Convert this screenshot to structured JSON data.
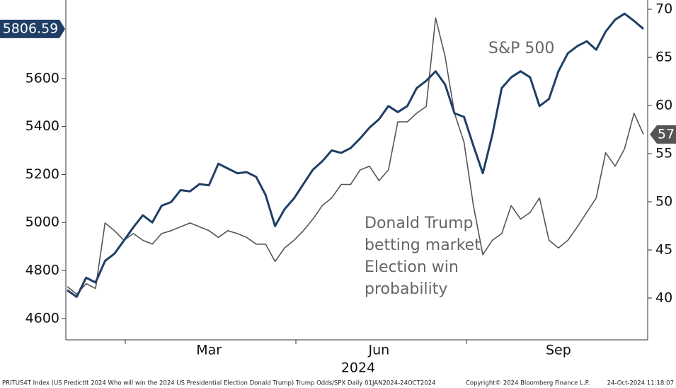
{
  "chart_data": {
    "type": "line",
    "categories": [
      null,
      null,
      null,
      null,
      null,
      null,
      null,
      null,
      null,
      null,
      null,
      null,
      null,
      null,
      null,
      "Mar",
      null,
      null,
      null,
      null,
      null,
      null,
      null,
      null,
      null,
      null,
      null,
      null,
      null,
      null,
      null,
      null,
      null,
      "Jun",
      null,
      null,
      null,
      null,
      null,
      null,
      null,
      null,
      null,
      null,
      null,
      null,
      null,
      null,
      null,
      null,
      null,
      null,
      "Sep",
      null,
      null,
      null,
      null,
      null,
      null,
      null,
      null,
      null
    ],
    "x_label": "2024",
    "series": [
      {
        "name": "S&P 500",
        "color": "#1f3f66",
        "axis": "y",
        "values": [
          4718,
          4690,
          4770,
          4750,
          4840,
          4870,
          4925,
          4980,
          5030,
          5000,
          5070,
          5085,
          5135,
          5130,
          5160,
          5155,
          5245,
          5225,
          5205,
          5210,
          5190,
          5115,
          4985,
          5055,
          5100,
          5160,
          5220,
          5255,
          5300,
          5290,
          5310,
          5350,
          5395,
          5430,
          5485,
          5460,
          5485,
          5560,
          5590,
          5630,
          5575,
          5455,
          5440,
          5320,
          5205,
          5365,
          5560,
          5605,
          5630,
          5605,
          5485,
          5515,
          5630,
          5705,
          5735,
          5755,
          5720,
          5795,
          5845,
          5870,
          5840,
          5806.59
        ],
        "last_label": "5806.59"
      },
      {
        "name": [
          "Donald Trump",
          "betting market",
          "Election win",
          "probability"
        ],
        "color": "#555555",
        "axis": "y2",
        "values": [
          41.2,
          40.4,
          41.5,
          41,
          47.8,
          47,
          46,
          46.7,
          46,
          45.6,
          46.7,
          47,
          47.4,
          47.8,
          47.4,
          47,
          46.3,
          47,
          46.7,
          46.3,
          45.6,
          45.6,
          43.8,
          45.2,
          46,
          47,
          48.2,
          49.6,
          50.4,
          51.8,
          51.8,
          53.3,
          53.7,
          52.2,
          53.3,
          58.3,
          58.3,
          59.2,
          59.9,
          69.1,
          65.1,
          59.2,
          56.2,
          49.6,
          44.5,
          46,
          46.7,
          49.6,
          48.2,
          48.9,
          50.4,
          46,
          45.2,
          46,
          47.4,
          48.9,
          50.4,
          55.1,
          53.7,
          55.5,
          59.2,
          57
        ],
        "last_label": "57"
      }
    ],
    "ylim": [
      4511,
      5927
    ],
    "yticks": [
      4600,
      4800,
      5000,
      5200,
      5400,
      5600
    ],
    "y2lim": [
      35.66,
      70.96
    ],
    "y2ticks": [
      40,
      45,
      50,
      55,
      60,
      65,
      70
    ],
    "footer": {
      "source": "PRITUS4T Index (US PredictIt 2024 Who will win the 2024 US Presidential Election Donald Trump) Trump Odds/SPX  Daily 01JAN2024-24OCT2024",
      "copyright": "Copyright© 2024 Bloomberg Finance L.P.",
      "timestamp": "24-Oct-2024 11:18:07"
    }
  }
}
